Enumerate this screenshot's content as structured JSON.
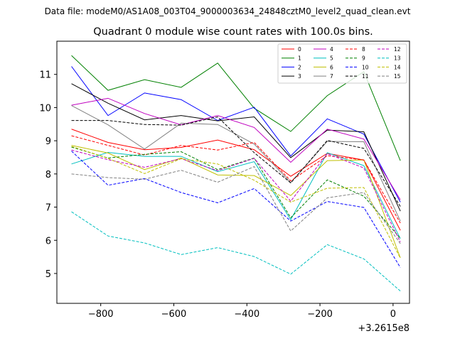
{
  "suptitle": "Data file: modeM0/AS1A08_003T04_9000003634_24848cztM0_level2_quad_clean.evt",
  "chart_data": {
    "type": "line",
    "title": "Quadrant 0 module wise count rates with 100.0s bins.",
    "xlabel": "",
    "ylabel": "",
    "x_offset_label": "+3.2615e8",
    "xlim": [
      -920,
      45
    ],
    "ylim": [
      4.1,
      12.0
    ],
    "xticks": [
      -800,
      -600,
      -400,
      -200,
      0
    ],
    "xtick_labels": [
      "−800",
      "−600",
      "−400",
      "−200",
      "0"
    ],
    "yticks": [
      5,
      6,
      7,
      8,
      9,
      10,
      11
    ],
    "ytick_labels": [
      "5",
      "6",
      "7",
      "8",
      "9",
      "10",
      "11"
    ],
    "grid": false,
    "legend_position": "top-right",
    "legend_columns": 4,
    "x": [
      -880,
      -780,
      -680,
      -580,
      -480,
      -380,
      -280,
      -180,
      -80,
      20
    ],
    "series": [
      {
        "name": "0",
        "color": "#ff0000",
        "dash": "solid",
        "values": [
          9.35,
          8.95,
          8.73,
          8.8,
          9.02,
          8.73,
          7.93,
          8.62,
          8.42,
          6.3
        ]
      },
      {
        "name": "1",
        "color": "#008000",
        "dash": "solid",
        "values": [
          11.57,
          10.52,
          10.84,
          10.61,
          11.34,
          9.98,
          9.28,
          10.36,
          11.08,
          8.4
        ]
      },
      {
        "name": "2",
        "color": "#0000ff",
        "dash": "solid",
        "values": [
          11.24,
          9.76,
          10.44,
          10.24,
          9.61,
          10.01,
          8.54,
          9.66,
          9.2,
          7.15
        ]
      },
      {
        "name": "3",
        "color": "#000000",
        "dash": "solid",
        "values": [
          10.72,
          10.13,
          9.63,
          9.76,
          9.6,
          9.72,
          8.49,
          9.32,
          9.27,
          6.88
        ]
      },
      {
        "name": "4",
        "color": "#bf00bf",
        "dash": "solid",
        "values": [
          10.07,
          10.28,
          9.82,
          9.48,
          9.76,
          9.4,
          8.35,
          9.35,
          9.05,
          7.22
        ]
      },
      {
        "name": "5",
        "color": "#00bfbf",
        "dash": "solid",
        "values": [
          8.3,
          8.65,
          8.53,
          8.53,
          8.07,
          8.37,
          6.62,
          8.64,
          8.25,
          6.05
        ]
      },
      {
        "name": "6",
        "color": "#bfbf00",
        "dash": "solid",
        "values": [
          8.86,
          8.63,
          8.13,
          8.48,
          7.97,
          7.95,
          7.35,
          8.4,
          8.42,
          5.47
        ]
      },
      {
        "name": "7",
        "color": "#808080",
        "dash": "solid",
        "values": [
          10.06,
          9.48,
          8.75,
          9.53,
          9.49,
          8.9,
          7.74,
          8.98,
          8.97,
          6.58
        ]
      },
      {
        "name": "8",
        "color": "#ff0000",
        "dash": "dashed",
        "values": [
          9.15,
          8.86,
          8.57,
          8.86,
          8.72,
          8.95,
          7.79,
          8.55,
          8.42,
          6.52
        ]
      },
      {
        "name": "9",
        "color": "#008000",
        "dash": "dashed",
        "values": [
          8.81,
          8.48,
          8.59,
          8.67,
          8.13,
          8.48,
          6.68,
          7.82,
          7.33,
          6.06
        ]
      },
      {
        "name": "10",
        "color": "#0000ff",
        "dash": "dashed",
        "values": [
          8.69,
          7.66,
          7.86,
          7.44,
          7.13,
          7.56,
          6.58,
          7.17,
          6.99,
          5.18
        ]
      },
      {
        "name": "11",
        "color": "#000000",
        "dash": "dashed",
        "values": [
          9.61,
          9.61,
          9.49,
          9.47,
          9.72,
          8.64,
          7.73,
          9.01,
          8.77,
          7.02
        ]
      },
      {
        "name": "12",
        "color": "#bf00bf",
        "dash": "dashed",
        "values": [
          8.72,
          8.43,
          8.2,
          8.46,
          8.1,
          8.47,
          7.18,
          8.61,
          8.18,
          5.95
        ]
      },
      {
        "name": "13",
        "color": "#00bfbf",
        "dash": "dashed",
        "values": [
          6.86,
          6.13,
          5.92,
          5.57,
          5.78,
          5.51,
          4.98,
          5.87,
          5.44,
          4.47
        ]
      },
      {
        "name": "14",
        "color": "#bfbf00",
        "dash": "dashed",
        "values": [
          8.83,
          8.47,
          8.01,
          8.46,
          8.3,
          7.81,
          7.15,
          7.57,
          7.59,
          5.46
        ]
      },
      {
        "name": "15",
        "color": "#808080",
        "dash": "dashed",
        "values": [
          8.0,
          7.89,
          7.84,
          8.11,
          7.75,
          8.22,
          6.28,
          7.28,
          7.44,
          5.9
        ]
      }
    ]
  }
}
